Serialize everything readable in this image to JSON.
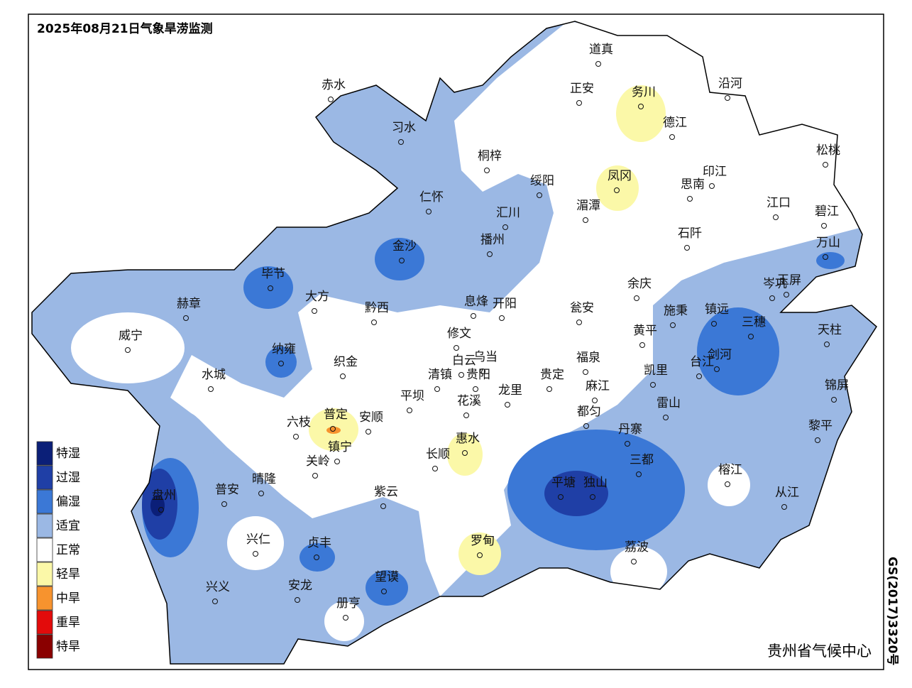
{
  "title": "2025年08月21日气象旱涝监测",
  "legend": [
    {
      "label": "特湿",
      "color": "#0b1f78"
    },
    {
      "label": "过湿",
      "color": "#1f3fa6"
    },
    {
      "label": "偏湿",
      "color": "#3b78d6"
    },
    {
      "label": "适宜",
      "color": "#9bb8e4"
    },
    {
      "label": "正常",
      "color": "#ffffff"
    },
    {
      "label": "轻旱",
      "color": "#fbf8a8"
    },
    {
      "label": "中旱",
      "color": "#f7932e"
    },
    {
      "label": "重旱",
      "color": "#e30b0b"
    },
    {
      "label": "特旱",
      "color": "#8a0000"
    }
  ],
  "cities": [
    "道真",
    "正安",
    "务川",
    "沿河",
    "赤水",
    "习水",
    "桐梓",
    "德江",
    "松桃",
    "绥阳",
    "凤冈",
    "印江",
    "思南",
    "仁怀",
    "汇川",
    "湄潭",
    "江口",
    "碧江",
    "石阡",
    "金沙",
    "播州",
    "万山",
    "毕节",
    "余庆",
    "岑巩",
    "玉屏",
    "大方",
    "赫章",
    "息烽",
    "开阳",
    "黔西",
    "瓮安",
    "施秉",
    "镇远",
    "三穗",
    "天柱",
    "黄平",
    "威宁",
    "修文",
    "纳雍",
    "白云",
    "乌当",
    "福泉",
    "剑河",
    "织金",
    "台江",
    "清镇",
    "贵阳",
    "贵定",
    "凯里",
    "水城",
    "锦屏",
    "龙里",
    "麻江",
    "平坝",
    "花溪",
    "雷山",
    "都匀",
    "普定",
    "安顺",
    "六枝",
    "黎平",
    "丹寨",
    "惠水",
    "镇宁",
    "长顺",
    "关岭",
    "三都",
    "榕江",
    "盘州",
    "晴隆",
    "普安",
    "平塘",
    "独山",
    "紫云",
    "从江",
    "兴仁",
    "贞丰",
    "罗甸",
    "荔波",
    "望谟",
    "兴义",
    "安龙",
    "册亨"
  ],
  "agency": "贵州省气候中心",
  "approval_code": "GS(2017)3320号"
}
